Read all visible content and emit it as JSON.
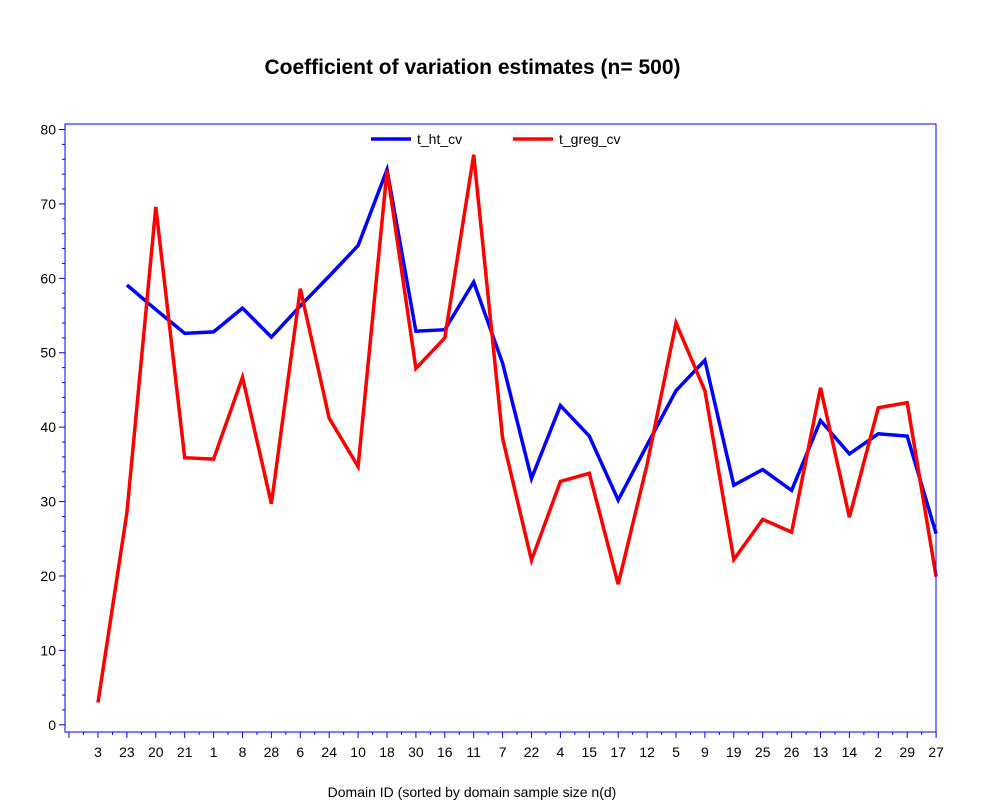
{
  "chart_data": {
    "type": "line",
    "title": "Coefficient of variation estimates (n= 500)",
    "xlabel": "Domain ID (sorted by domain sample size n(d)",
    "ylabel": "",
    "categories": [
      "3",
      "23",
      "20",
      "21",
      "1",
      "8",
      "28",
      "6",
      "24",
      "10",
      "18",
      "30",
      "16",
      "11",
      "7",
      "22",
      "4",
      "15",
      "17",
      "12",
      "5",
      "9",
      "19",
      "25",
      "26",
      "13",
      "14",
      "2",
      "29",
      "27"
    ],
    "yticks": [
      0,
      10,
      20,
      30,
      40,
      50,
      60,
      70,
      80
    ],
    "ylim": [
      0,
      80
    ],
    "grid": false,
    "legend_position": "top",
    "series": [
      {
        "name": "t_ht_cv",
        "color": "#0000ff",
        "values": [
          null,
          59.1,
          55.8,
          52.6,
          52.8,
          56.0,
          52.1,
          56.3,
          60.3,
          64.4,
          74.6,
          52.9,
          53.1,
          59.5,
          48.6,
          33.1,
          42.9,
          38.8,
          30.2,
          37.6,
          44.9,
          49.0,
          32.2,
          34.3,
          31.5,
          40.9,
          36.4,
          39.1,
          38.8,
          25.7
        ]
      },
      {
        "name": "t_greg_cv",
        "color": "#ff0000",
        "values": [
          3.0,
          28.5,
          69.6,
          35.9,
          35.7,
          46.7,
          29.7,
          58.6,
          41.2,
          34.7,
          74.5,
          47.9,
          52.0,
          76.6,
          38.5,
          22.1,
          32.7,
          33.8,
          18.9,
          35.0,
          54.0,
          44.9,
          22.2,
          27.6,
          25.9,
          45.3,
          27.9,
          42.6,
          43.3,
          19.9
        ]
      }
    ]
  }
}
